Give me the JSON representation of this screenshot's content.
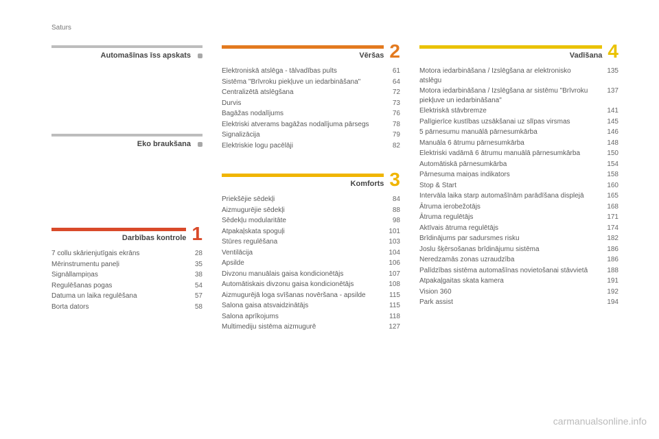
{
  "page_label": "Saturs",
  "watermark": "carmanualsonline.info",
  "intro_blocks": [
    {
      "title": "Automašīnas īss apskats"
    },
    {
      "title": "Eko braukšana"
    }
  ],
  "sections": [
    {
      "number": "1",
      "title": "Darbības kontrole",
      "bar_color": "#d94a2a",
      "num_color": "#d94a2a",
      "entries": [
        {
          "label": "7 collu skārienjutīgais ekrāns",
          "page": "28"
        },
        {
          "label": "Mērinstrumentu paneļi",
          "page": "35"
        },
        {
          "label": "Signāllampiņas",
          "page": "38"
        },
        {
          "label": "Regulēšanas pogas",
          "page": "54"
        },
        {
          "label": "Datuma un laika regulēšana",
          "page": "57"
        },
        {
          "label": "Borta dators",
          "page": "58"
        }
      ]
    },
    {
      "number": "2",
      "title": "Vēršas",
      "bar_color": "#e37a1f",
      "num_color": "#e37a1f",
      "entries": [
        {
          "label": "Elektroniskā atslēga - tālvadības pults",
          "page": "61"
        },
        {
          "label": "Sistēma \"Brīvroku piekļuve un iedarbināšana\"",
          "page": "64"
        },
        {
          "label": "Centralizētā atslēgšana",
          "page": "72"
        },
        {
          "label": "Durvis",
          "page": "73"
        },
        {
          "label": "Bagāžas nodalījums",
          "page": "76"
        },
        {
          "label": "Elektriski atverams bagāžas nodalījuma pārsegs",
          "page": "78"
        },
        {
          "label": "Signalizācija",
          "page": "79"
        },
        {
          "label": "Elektriskie logu pacēlāji",
          "page": "82"
        }
      ]
    },
    {
      "number": "3",
      "title": "Komforts",
      "bar_color": "#f0b500",
      "num_color": "#f0b500",
      "entries": [
        {
          "label": "Priekšējie sēdekļi",
          "page": "84"
        },
        {
          "label": "Aizmugurējie sēdekļi",
          "page": "88"
        },
        {
          "label": "Sēdekļu modularitāte",
          "page": "98"
        },
        {
          "label": "Atpakaļskata spoguļi",
          "page": "101"
        },
        {
          "label": "Stūres regulēšana",
          "page": "103"
        },
        {
          "label": "Ventilācija",
          "page": "104"
        },
        {
          "label": "Apsilde",
          "page": "106"
        },
        {
          "label": "Divzonu manuālais gaisa kondicionētājs",
          "page": "107"
        },
        {
          "label": "Automātiskais divzonu gaisa kondicionētājs",
          "page": "108"
        },
        {
          "label": "Aizmugurējā loga svīšanas novēršana - apsilde",
          "page": "115"
        },
        {
          "label": "Salona gaisa atsvaidzinātājs",
          "page": "115"
        },
        {
          "label": "Salona aprīkojums",
          "page": "118"
        },
        {
          "label": "Multimediju sistēma aizmugurē",
          "page": "127"
        }
      ]
    },
    {
      "number": "4",
      "title": "Vadīšana",
      "bar_color": "#eac200",
      "num_color": "#eac200",
      "entries": [
        {
          "label": "Motora iedarbināšana / Izslēgšana ar elektronisko atslēgu",
          "page": "135"
        },
        {
          "label": "Motora iedarbināšana / Izslēgšana ar sistēmu \"Brīvroku piekļuve un iedarbināšana\"",
          "page": "137"
        },
        {
          "label": "Elektriskā stāvbremze",
          "page": "141"
        },
        {
          "label": "Palīgierīce kustības uzsākšanai uz slīpas virsmas",
          "page": "145"
        },
        {
          "label": "5 pārnesumu manuālā pārnesumkārba",
          "page": "146"
        },
        {
          "label": "Manuāla 6 ātrumu pārnesumkārba",
          "page": "148"
        },
        {
          "label": "Elektriski vadāmā 6 ātrumu manuālā pārnesumkārba",
          "page": "150"
        },
        {
          "label": "Automātiskā pārnesumkārba",
          "page": "154"
        },
        {
          "label": "Pārnesuma maiņas indikators",
          "page": "158"
        },
        {
          "label": "Stop & Start",
          "page": "160"
        },
        {
          "label": "Intervāla laika starp automašīnām parādīšana displejā",
          "page": "165"
        },
        {
          "label": "Ātruma ierobežotājs",
          "page": "168"
        },
        {
          "label": "Ātruma regulētājs",
          "page": "171"
        },
        {
          "label": "Aktīvais ātruma regulētājs",
          "page": "174"
        },
        {
          "label": "Brīdinājums par sadursmes risku",
          "page": "182"
        },
        {
          "label": "Joslu šķērsošanas brīdinājumu sistēma",
          "page": "186"
        },
        {
          "label": "Neredzamās zonas uzraudzība",
          "page": "186"
        },
        {
          "label": "Palīdzības sistēma automašīnas novietošanai stāvvietā",
          "page": "188"
        },
        {
          "label": "Atpakaļgaitas skata kamera",
          "page": "191"
        },
        {
          "label": "Vision 360",
          "page": "192"
        },
        {
          "label": "Park assist",
          "page": "194"
        }
      ]
    }
  ],
  "ui_colors": {
    "text": "#5a5a5a",
    "muted": "#bdbdbd",
    "background": "#ffffff"
  }
}
